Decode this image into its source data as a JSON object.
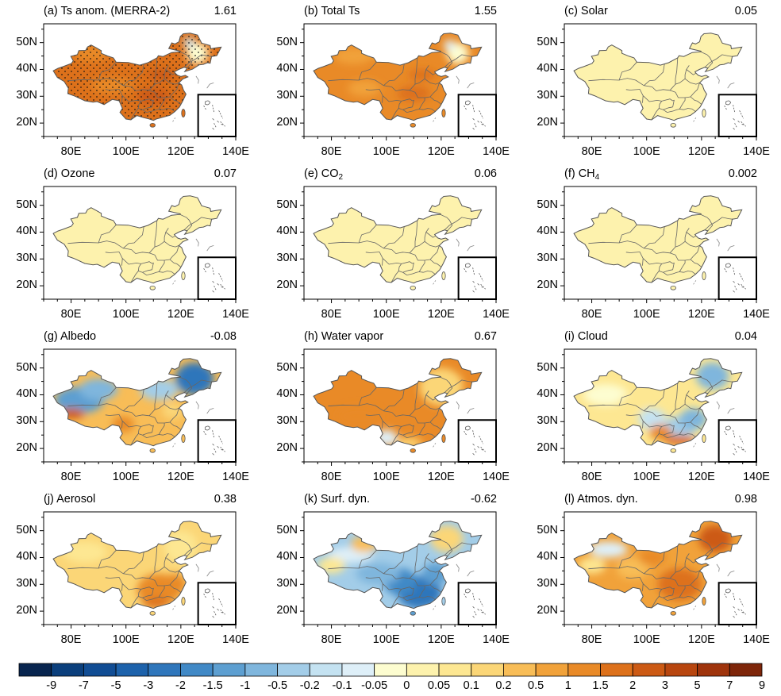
{
  "panels": [
    {
      "id": "a",
      "title": "(a) Ts anom. (MERRA-2)",
      "value": "1.61",
      "style": "anom",
      "stipple": true
    },
    {
      "id": "b",
      "title": "(b) Total Ts",
      "value": "1.55",
      "style": "total"
    },
    {
      "id": "c",
      "title": "(c) Solar",
      "value": "0.05",
      "style": "faint"
    },
    {
      "id": "d",
      "title": "(d) Ozone",
      "value": "0.07",
      "style": "faint"
    },
    {
      "id": "e",
      "title": "(e) CO",
      "title_sub": "2",
      "value": "0.06",
      "style": "faint"
    },
    {
      "id": "f",
      "title": "(f) CH",
      "title_sub": "4",
      "value": "0.002",
      "style": "faint"
    },
    {
      "id": "g",
      "title": "(g) Albedo",
      "value": "-0.08",
      "style": "albedo"
    },
    {
      "id": "h",
      "title": "(h) Water vapor",
      "value": "0.67",
      "style": "wv"
    },
    {
      "id": "i",
      "title": "(i) Cloud",
      "value": "0.04",
      "style": "cloud"
    },
    {
      "id": "j",
      "title": "(j) Aerosol",
      "value": "0.38",
      "style": "aerosol"
    },
    {
      "id": "k",
      "title": "(k) Surf. dyn.",
      "value": "-0.62",
      "style": "surf"
    },
    {
      "id": "l",
      "title": "(l) Atmos. dyn.",
      "value": "0.98",
      "style": "atmos"
    }
  ],
  "axes": {
    "lat_ticks": [
      "20N",
      "30N",
      "40N",
      "50N"
    ],
    "lon_ticks": [
      "80E",
      "100E",
      "120E",
      "140E"
    ]
  },
  "colorbar": {
    "labels": [
      "-9",
      "-7",
      "-5",
      "-3",
      "-2",
      "-1.5",
      "-1",
      "-0.5",
      "-0.2",
      "-0.1",
      "-0.05",
      "0",
      "0.05",
      "0.1",
      "0.2",
      "0.5",
      "1",
      "1.5",
      "2",
      "3",
      "5",
      "7",
      "9"
    ],
    "colors": [
      "#08254f",
      "#0b3f7c",
      "#114d94",
      "#1d62ab",
      "#2f76bb",
      "#4189c6",
      "#5d9fd1",
      "#7fb6dd",
      "#a3cde8",
      "#c4e2f1",
      "#deeff8",
      "#fdfdd0",
      "#fdf2ad",
      "#fde792",
      "#fbd677",
      "#f8bd57",
      "#f1a23a",
      "#e98a27",
      "#dd711b",
      "#cc5a14",
      "#b8460f",
      "#9f340c",
      "#7e260a"
    ]
  }
}
